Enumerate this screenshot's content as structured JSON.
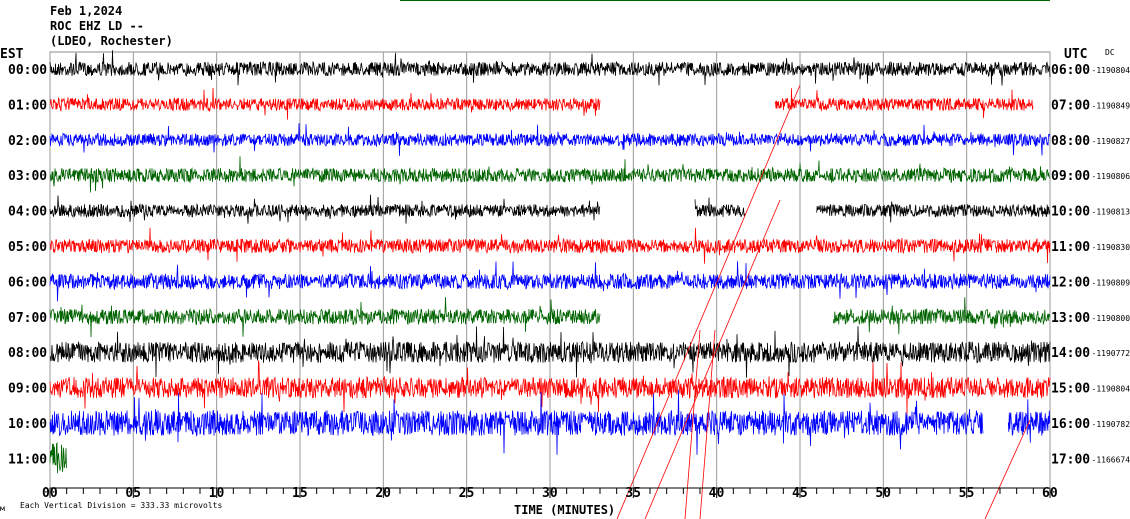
{
  "header": {
    "date": "Feb 1,2024",
    "station": "ROC EHZ LD --",
    "network": "(LDEO, Rochester)",
    "left_zone": "EST",
    "right_zone": "UTC",
    "dc_label": "DC"
  },
  "footer": {
    "scale": "Each Vertical Division =  333.33 microvolts",
    "corner_mark": "м"
  },
  "chart_data": {
    "type": "line",
    "title": "Feb 1,2024 ROC EHZ LD -- (LDEO, Rochester)",
    "xlabel": "TIME (MINUTES)",
    "xlim": [
      0,
      60
    ],
    "x_ticks": [
      "00",
      "05",
      "10",
      "15",
      "20",
      "25",
      "30",
      "35",
      "40",
      "45",
      "50",
      "55",
      "60"
    ],
    "rows": [
      {
        "est": "00:00",
        "utc": "06:00",
        "dc": "-1190804",
        "color": "#000000",
        "amp": 1.0,
        "segments": [
          [
            0,
            60
          ]
        ]
      },
      {
        "est": "01:00",
        "utc": "07:00",
        "dc": "-1190849",
        "color": "#ff0000",
        "amp": 0.9,
        "segments": [
          [
            0,
            33
          ],
          [
            43.5,
            59
          ]
        ]
      },
      {
        "est": "02:00",
        "utc": "08:00",
        "dc": "-1190827",
        "color": "#0000ff",
        "amp": 0.9,
        "segments": [
          [
            0,
            60
          ]
        ]
      },
      {
        "est": "03:00",
        "utc": "09:00",
        "dc": "-1190806",
        "color": "#006400",
        "amp": 1.0,
        "segments": [
          [
            0,
            60
          ]
        ]
      },
      {
        "est": "04:00",
        "utc": "10:00",
        "dc": "-1190813",
        "color": "#000000",
        "amp": 0.9,
        "segments": [
          [
            0,
            33
          ],
          [
            38.7,
            41.7
          ],
          [
            46,
            60
          ]
        ]
      },
      {
        "est": "05:00",
        "utc": "11:00",
        "dc": "-1190830",
        "color": "#ff0000",
        "amp": 1.0,
        "segments": [
          [
            0,
            60
          ]
        ]
      },
      {
        "est": "06:00",
        "utc": "12:00",
        "dc": "-1190809",
        "color": "#0000ff",
        "amp": 1.1,
        "segments": [
          [
            0,
            60
          ]
        ]
      },
      {
        "est": "07:00",
        "utc": "13:00",
        "dc": "-1190800",
        "color": "#006400",
        "amp": 1.1,
        "segments": [
          [
            0,
            33
          ],
          [
            47,
            60
          ]
        ]
      },
      {
        "est": "08:00",
        "utc": "14:00",
        "dc": "-1190772",
        "color": "#000000",
        "amp": 1.5,
        "segments": [
          [
            0,
            60
          ]
        ]
      },
      {
        "est": "09:00",
        "utc": "15:00",
        "dc": "-1190804",
        "color": "#ff0000",
        "amp": 1.5,
        "segments": [
          [
            0,
            60
          ]
        ]
      },
      {
        "est": "10:00",
        "utc": "16:00",
        "dc": "-1190782",
        "color": "#0000ff",
        "amp": 1.8,
        "segments": [
          [
            0,
            56
          ],
          [
            57.5,
            60
          ]
        ]
      },
      {
        "est": "11:00",
        "utc": "17:00",
        "dc": "-1166674",
        "color": "#006400",
        "amp": 2.2,
        "segments": [
          [
            0,
            1
          ]
        ]
      }
    ]
  }
}
